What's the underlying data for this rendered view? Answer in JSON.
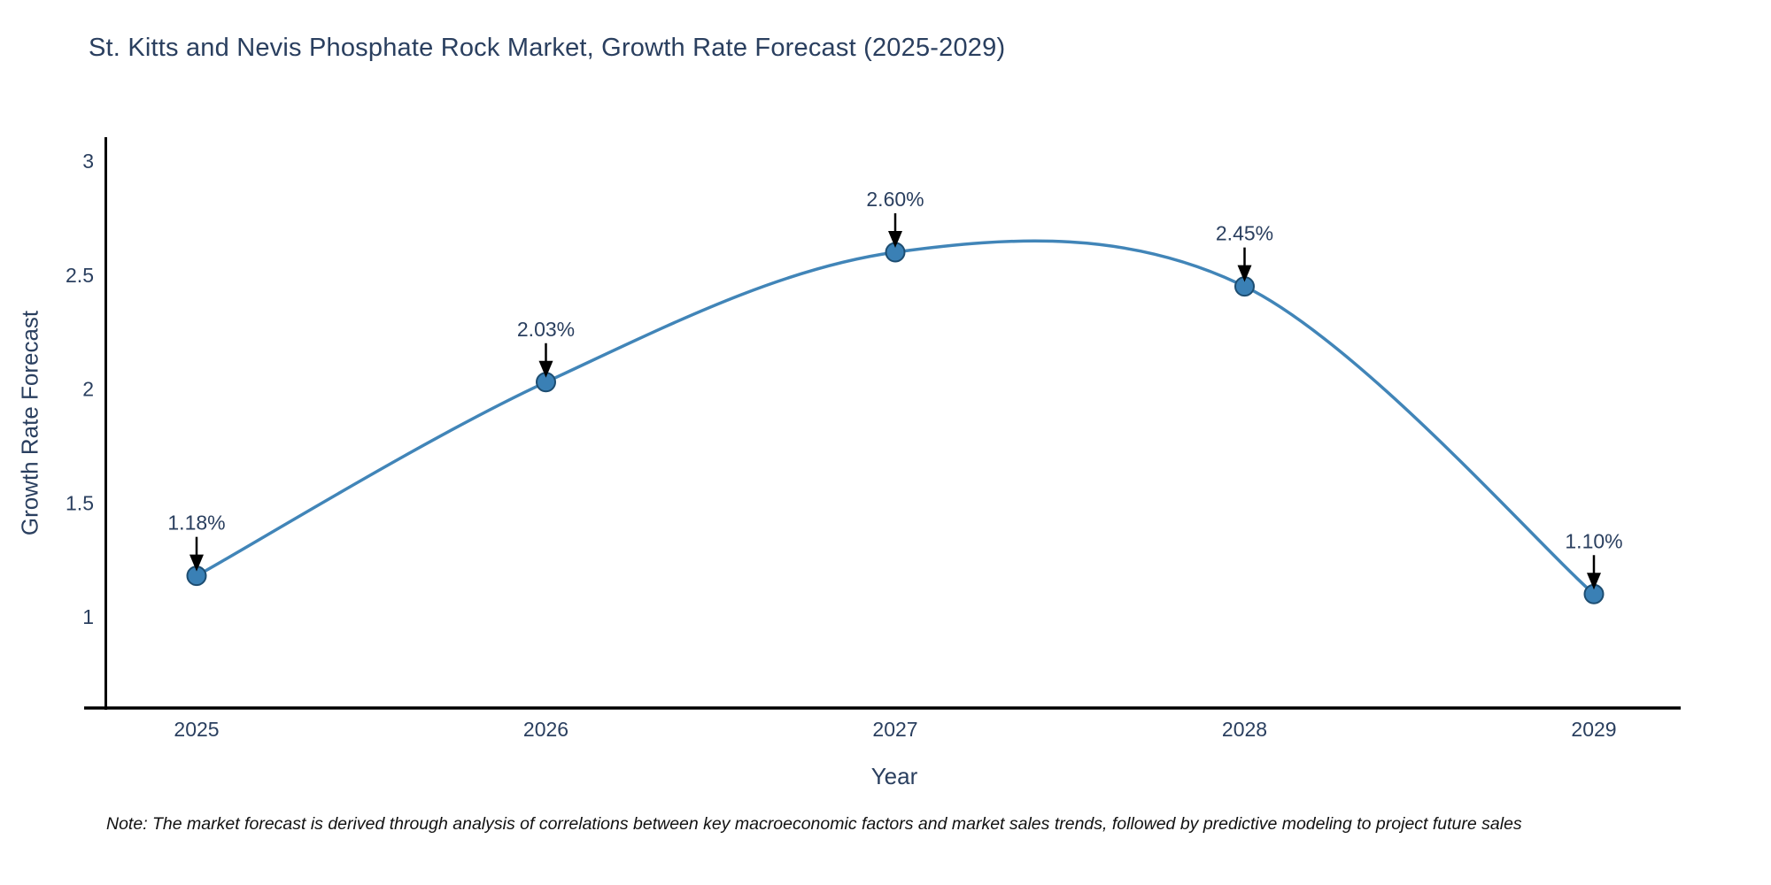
{
  "chart_data": {
    "type": "line",
    "title": "St. Kitts and Nevis Phosphate Rock Market, Growth Rate Forecast (2025-2029)",
    "xlabel": "Year",
    "ylabel": "Growth Rate Forecast",
    "x": [
      2025,
      2026,
      2027,
      2028,
      2029
    ],
    "values": [
      1.18,
      2.03,
      2.6,
      2.45,
      1.1
    ],
    "point_labels": [
      "1.18%",
      "2.03%",
      "2.60%",
      "2.45%",
      "1.10%"
    ],
    "x_ticks": [
      "2025",
      "2026",
      "2027",
      "2028",
      "2029"
    ],
    "y_ticks": [
      1,
      1.5,
      2,
      2.5,
      3
    ],
    "xlim": [
      2024.72,
      2029.25
    ],
    "ylim": [
      0.6,
      3.1
    ],
    "grid": false,
    "line_shape": "spline",
    "legend": "none",
    "colors": {
      "line": "#4185b8",
      "marker_fill": "#3a80b5",
      "marker_edge": "#1d4d71",
      "text": "#2a3f5f",
      "axis_line": "#000000",
      "annotation_arrow": "#000000",
      "background": "#ffffff"
    },
    "note": "Note: The market forecast is derived through analysis of correlations between key macroeconomic factors and market sales trends, followed by predictive modeling to project future sales"
  }
}
